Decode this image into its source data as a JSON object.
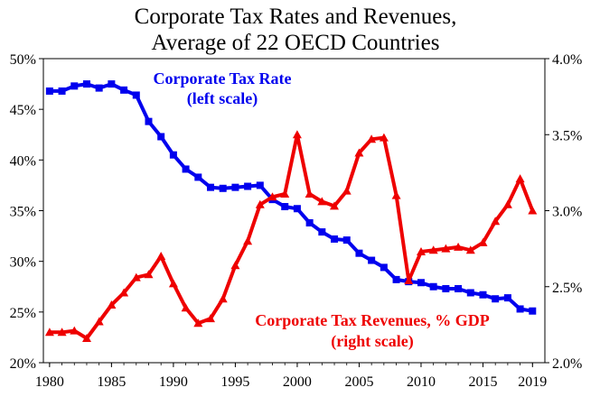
{
  "chart_data": {
    "type": "line",
    "title_line1": "Corporate Tax Rates and Revenues,",
    "title_line2": "Average of 22 OECD Countries",
    "x": [
      1980,
      1981,
      1982,
      1983,
      1984,
      1985,
      1986,
      1987,
      1988,
      1989,
      1990,
      1991,
      1992,
      1993,
      1994,
      1995,
      1996,
      1997,
      1998,
      1999,
      2000,
      2001,
      2002,
      2003,
      2004,
      2005,
      2006,
      2007,
      2008,
      2009,
      2010,
      2011,
      2012,
      2013,
      2014,
      2015,
      2016,
      2017,
      2018,
      2019
    ],
    "xlim": [
      1979.5,
      2020
    ],
    "x_ticks": [
      "1980",
      "1985",
      "1990",
      "1995",
      "2000",
      "2005",
      "2010",
      "2015",
      "2019"
    ],
    "x_tick_values": [
      1980,
      1985,
      1990,
      1995,
      2000,
      2005,
      2010,
      2015,
      2019
    ],
    "left_axis": {
      "ylim": [
        20,
        50
      ],
      "ticks": [
        "20%",
        "25%",
        "30%",
        "35%",
        "40%",
        "45%",
        "50%"
      ],
      "tick_values": [
        20,
        25,
        30,
        35,
        40,
        45,
        50
      ]
    },
    "right_axis": {
      "ylim": [
        2.0,
        4.0
      ],
      "ticks": [
        "2.0%",
        "2.5%",
        "3.0%",
        "3.5%",
        "4.0%"
      ],
      "tick_values": [
        2.0,
        2.5,
        3.0,
        3.5,
        4.0
      ]
    },
    "series": [
      {
        "name_line1": "Corporate Tax Rate",
        "name_line2": "(left scale)",
        "axis": "left",
        "color": "#0000ee",
        "marker": "square",
        "values": [
          46.8,
          46.8,
          47.3,
          47.5,
          47.1,
          47.5,
          46.9,
          46.4,
          43.8,
          42.3,
          40.5,
          39.1,
          38.3,
          37.3,
          37.2,
          37.3,
          37.4,
          37.5,
          36.1,
          35.4,
          35.2,
          33.8,
          32.9,
          32.2,
          32.1,
          30.8,
          30.1,
          29.4,
          28.2,
          28.0,
          27.9,
          27.5,
          27.3,
          27.3,
          26.9,
          26.7,
          26.3,
          26.4,
          25.3,
          25.1
        ]
      },
      {
        "name_line1": "Corporate Tax Revenues, % GDP",
        "name_line2": "(right scale)",
        "axis": "right",
        "color": "#ee0000",
        "marker": "triangle",
        "values": [
          2.2,
          2.2,
          2.21,
          2.16,
          2.27,
          2.38,
          2.46,
          2.56,
          2.58,
          2.7,
          2.52,
          2.36,
          2.26,
          2.29,
          2.42,
          2.64,
          2.8,
          3.04,
          3.09,
          3.11,
          3.5,
          3.11,
          3.06,
          3.03,
          3.13,
          3.38,
          3.47,
          3.48,
          3.1,
          2.54,
          2.73,
          2.74,
          2.75,
          2.76,
          2.74,
          2.79,
          2.93,
          3.04,
          3.21,
          3.0
        ]
      }
    ]
  }
}
